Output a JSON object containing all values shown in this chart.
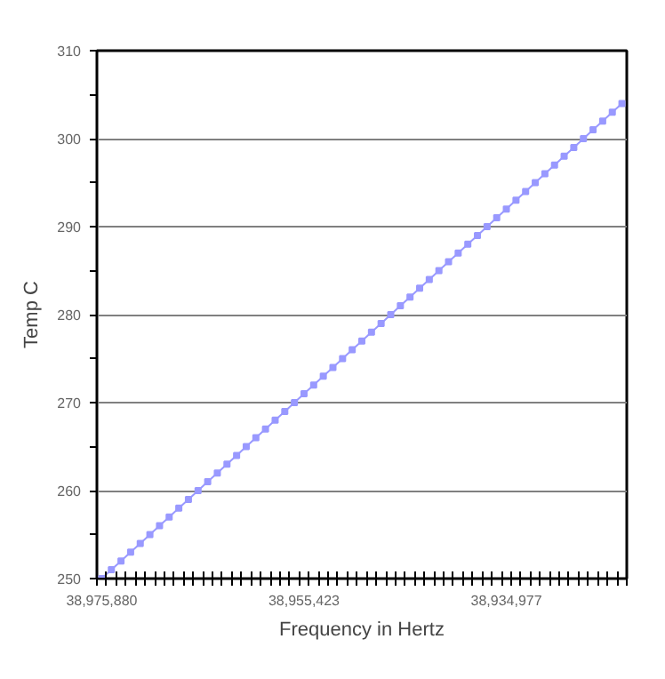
{
  "chart_data": {
    "type": "line",
    "xlabel": "Frequency in Hertz",
    "ylabel": "Temp C",
    "categories": [
      "38,975,880",
      null,
      null,
      null,
      null,
      null,
      null,
      null,
      null,
      null,
      null,
      null,
      null,
      null,
      null,
      null,
      null,
      null,
      null,
      null,
      null,
      "38,955,423",
      null,
      null,
      null,
      null,
      null,
      null,
      null,
      null,
      null,
      null,
      null,
      null,
      null,
      null,
      null,
      null,
      null,
      null,
      null,
      null,
      "38,934,977",
      null,
      null,
      null,
      null,
      null,
      null,
      null,
      null,
      null,
      null,
      null,
      null
    ],
    "series": [
      {
        "color": "#9999ff",
        "values": [
          250,
          251,
          252,
          253,
          254,
          255,
          256,
          257,
          258,
          259,
          260,
          261,
          262,
          263,
          264,
          265,
          266,
          267,
          268,
          269,
          270,
          271,
          272,
          273,
          274,
          275,
          276,
          277,
          278,
          279,
          280,
          281,
          282,
          283,
          284,
          285,
          286,
          287,
          288,
          289,
          290,
          291,
          292,
          293,
          294,
          295,
          296,
          297,
          298,
          299,
          300,
          301,
          302,
          303,
          304
        ]
      }
    ],
    "ylim": [
      250,
      310
    ],
    "yticks": [
      250,
      {
        "value": 255,
        "label": null
      },
      260,
      {
        "value": 265,
        "label": null
      },
      270,
      {
        "value": 275,
        "label": null
      },
      280,
      {
        "value": 285,
        "label": null
      },
      290,
      {
        "value": 295,
        "label": null
      },
      300,
      {
        "value": 305,
        "label": null
      },
      310
    ],
    "grid": "y",
    "marker": "square",
    "line_style": "solid"
  }
}
